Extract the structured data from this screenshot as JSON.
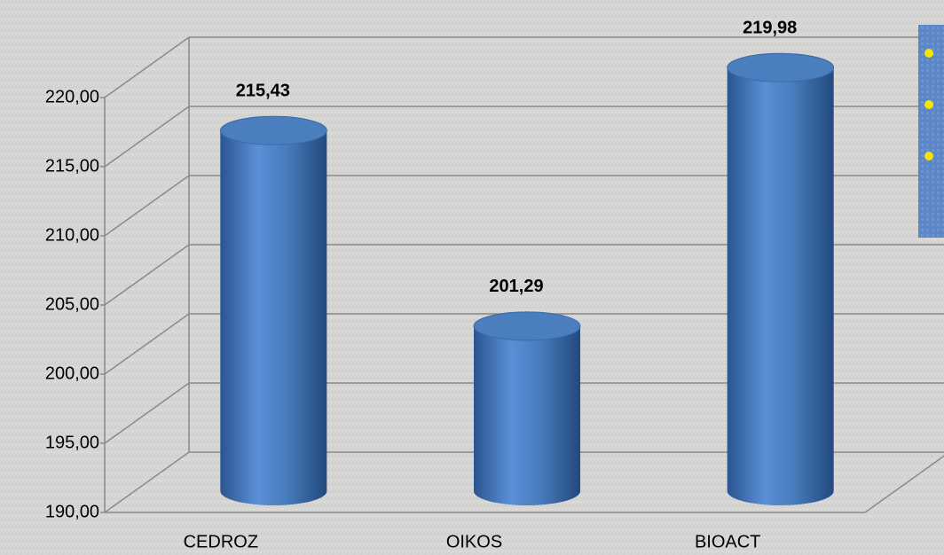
{
  "chart_data": {
    "type": "bar",
    "categories": [
      "CEDROZ",
      "OIKOS",
      "BIOACT"
    ],
    "values": [
      215.43,
      201.29,
      219.98
    ],
    "value_labels": [
      "215,43",
      "201,29",
      "219,98"
    ],
    "color": "#4a7ebf",
    "ylim": [
      190,
      220
    ],
    "yticks": [
      {
        "value": 190,
        "label": "190,00"
      },
      {
        "value": 195,
        "label": "195,00"
      },
      {
        "value": 200,
        "label": "200,00"
      },
      {
        "value": 205,
        "label": "205,00"
      },
      {
        "value": 210,
        "label": "210,00"
      },
      {
        "value": 215,
        "label": "215,00"
      },
      {
        "value": 220,
        "label": "220,00"
      }
    ],
    "grid": true
  }
}
